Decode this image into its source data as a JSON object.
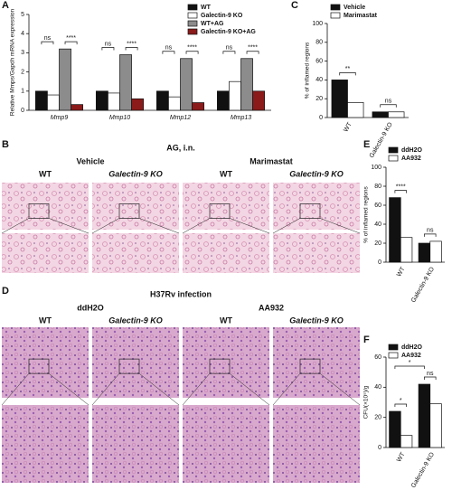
{
  "chart_data": [
    {
      "type": "bar",
      "panel": "A",
      "ylabel": "Relative Mmps/Gapdh mRNA expression",
      "categories": [
        "Mmp9",
        "Mmp10",
        "Mmp12",
        "Mmp13"
      ],
      "series": [
        {
          "name": "WT",
          "color": "#111111",
          "values": [
            1.0,
            1.0,
            1.0,
            1.0
          ]
        },
        {
          "name": "Galectin-9 KO",
          "color": "#ffffff",
          "values": [
            0.8,
            0.9,
            0.7,
            1.5
          ]
        },
        {
          "name": "WT+AG",
          "color": "#8c8c8c",
          "values": [
            3.2,
            2.9,
            2.7,
            2.7
          ]
        },
        {
          "name": "Galectin-9 KO+AG",
          "color": "#8b1a1a",
          "values": [
            0.3,
            0.6,
            0.4,
            1.0
          ]
        }
      ],
      "ylim": [
        0,
        5
      ],
      "yticks": [
        0,
        1,
        2,
        3,
        4,
        5
      ],
      "legend": "top-right",
      "annotations": [
        "ns",
        "****",
        "ns",
        "****",
        "ns",
        "****",
        "ns",
        "****"
      ]
    },
    {
      "type": "bar",
      "panel": "C",
      "ylabel": "% of inflamed regions",
      "categories": [
        "WT",
        "Galectin-9 KO"
      ],
      "series": [
        {
          "name": "Vehicle",
          "color": "#111111",
          "values": [
            40,
            6
          ]
        },
        {
          "name": "Marimastat",
          "color": "#ffffff",
          "values": [
            16,
            6
          ]
        }
      ],
      "ylim": [
        0,
        100
      ],
      "yticks": [
        0,
        20,
        40,
        60,
        80,
        100
      ],
      "legend": "top-left",
      "annotations": [
        "**",
        "ns"
      ]
    },
    {
      "type": "bar",
      "panel": "E",
      "ylabel": "% of inflamed regions",
      "categories": [
        "WT",
        "Galectin-9 KO"
      ],
      "series": [
        {
          "name": "ddH2O",
          "color": "#111111",
          "values": [
            68,
            20
          ]
        },
        {
          "name": "AA932",
          "color": "#ffffff",
          "values": [
            26,
            22
          ]
        }
      ],
      "ylim": [
        0,
        100
      ],
      "yticks": [
        0,
        20,
        40,
        60,
        80,
        100
      ],
      "legend": "top-left",
      "annotations": [
        "****",
        "ns"
      ]
    },
    {
      "type": "bar",
      "panel": "F",
      "ylabel": "CFU(×10⁵)/g",
      "categories": [
        "WT",
        "Galectin-9 KO"
      ],
      "series": [
        {
          "name": "ddH2O",
          "color": "#111111",
          "values": [
            24,
            42
          ]
        },
        {
          "name": "AA932",
          "color": "#ffffff",
          "values": [
            8,
            29
          ]
        }
      ],
      "ylim": [
        0,
        60
      ],
      "yticks": [
        0,
        20,
        40,
        60
      ],
      "legend": "top-left",
      "annotations": [
        "*",
        "*",
        "ns"
      ]
    }
  ],
  "panels": {
    "B": {
      "letter": "B",
      "title": "AG, i.n.",
      "groups": [
        {
          "label": "Vehicle",
          "columns": [
            "WT",
            "Galectin-9 KO"
          ]
        },
        {
          "label": "Marimastat",
          "columns": [
            "WT",
            "Galectin-9 KO"
          ]
        }
      ]
    },
    "D": {
      "letter": "D",
      "title": "H37Rv infection",
      "groups": [
        {
          "label": "ddH2O",
          "columns": [
            "WT",
            "Galectin-9 KO"
          ]
        },
        {
          "label": "AA932",
          "columns": [
            "WT",
            "Galectin-9 KO"
          ]
        }
      ]
    }
  }
}
